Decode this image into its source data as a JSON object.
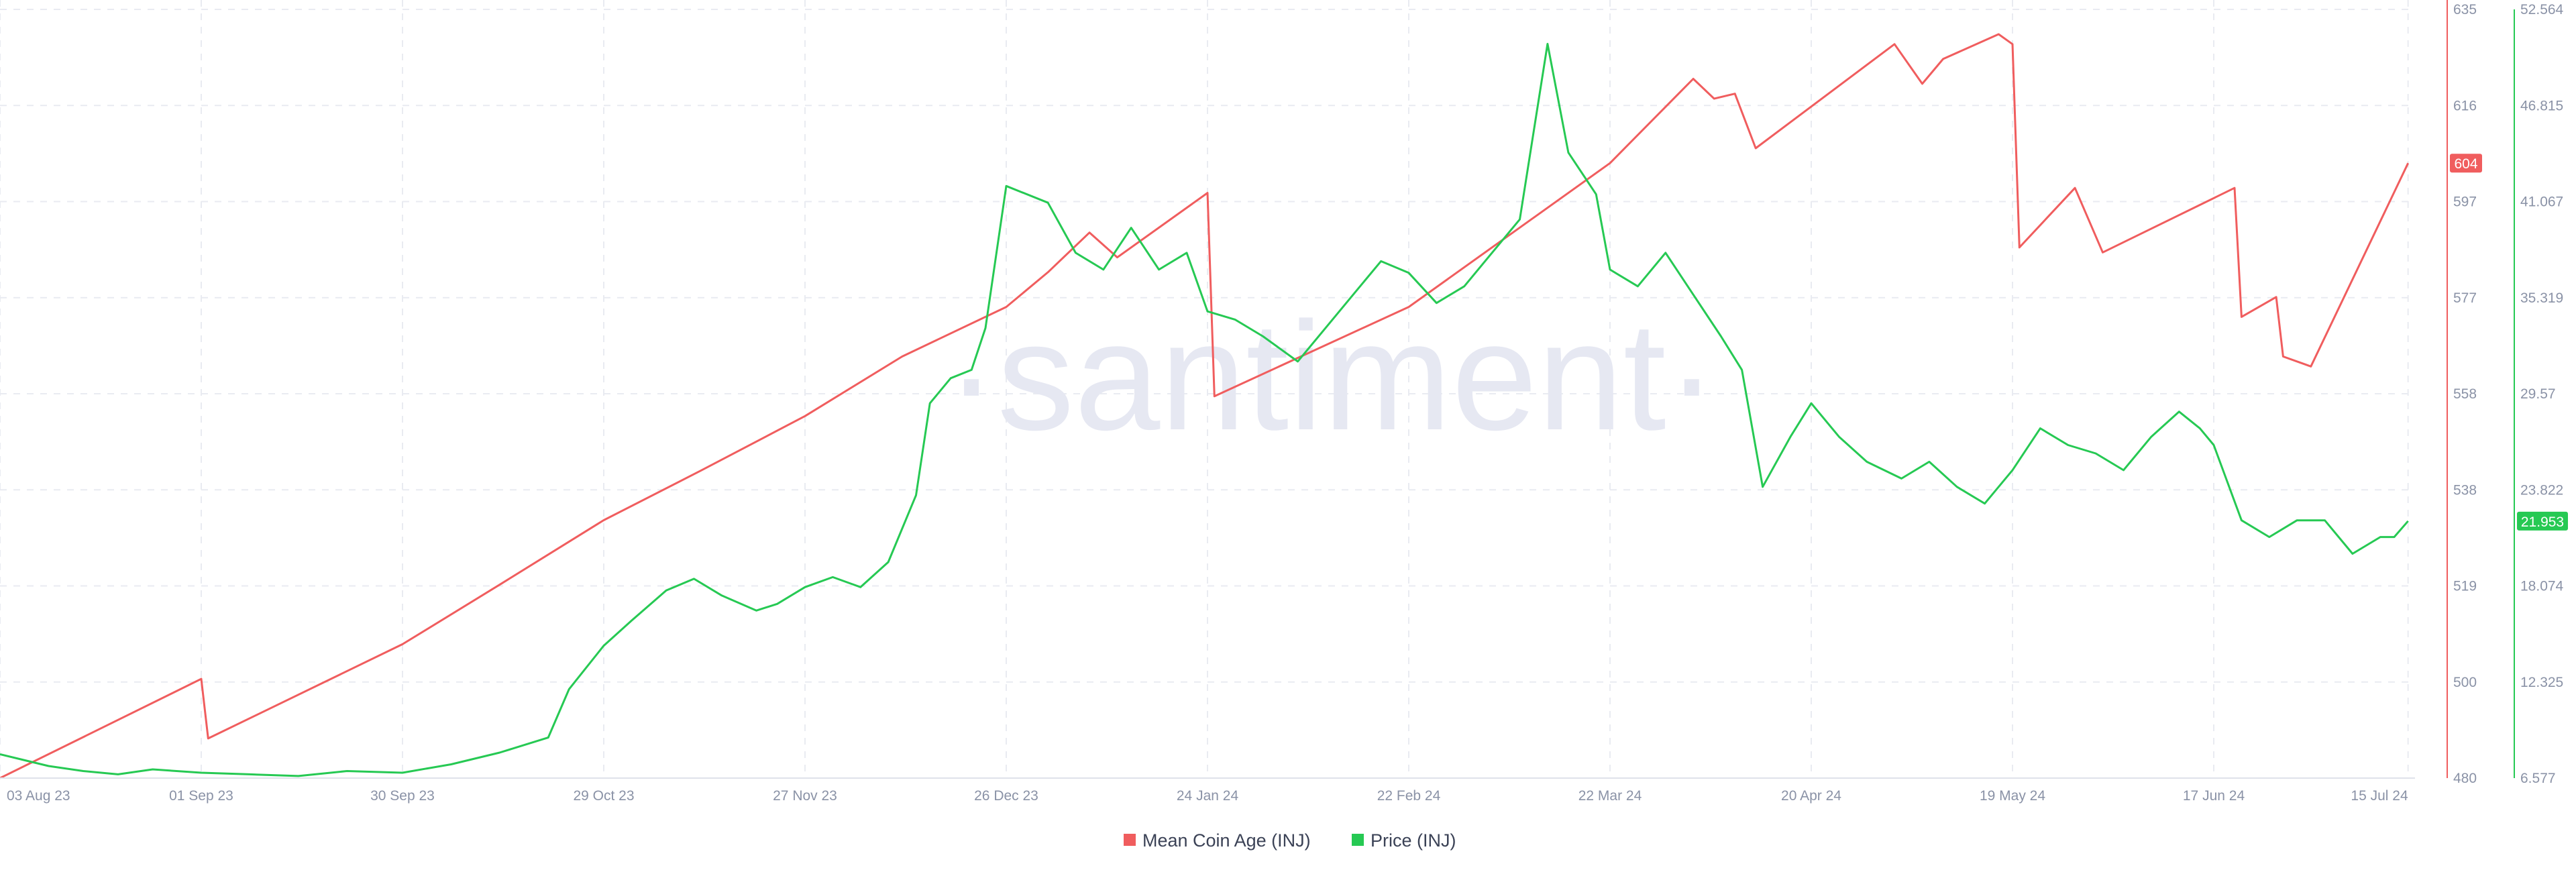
{
  "watermark": "·santiment·",
  "chart_data": {
    "type": "line",
    "x_tick_labels": [
      "03 Aug 23",
      "01 Sep 23",
      "30 Sep 23",
      "29 Oct 23",
      "27 Nov 23",
      "26 Dec 23",
      "24 Jan 24",
      "22 Feb 24",
      "22 Mar 24",
      "20 Apr 24",
      "19 May 24",
      "17 Jun 24",
      "15 Jul 24"
    ],
    "x_tick_dates": [
      "2023-08-03",
      "2023-09-01",
      "2023-09-30",
      "2023-10-29",
      "2023-11-27",
      "2023-12-26",
      "2024-01-24",
      "2024-02-22",
      "2024-03-22",
      "2024-04-20",
      "2024-05-19",
      "2024-06-17",
      "2024-07-15"
    ],
    "xlim": [
      "2023-08-03",
      "2024-07-16"
    ],
    "grid": true,
    "legend": "bottom-center",
    "axes": {
      "mean_coin_age": {
        "side": "right",
        "color": "#f05d5e",
        "ylim": [
          480,
          635
        ],
        "ticks": [
          "635",
          "616",
          "597",
          "577",
          "558",
          "538",
          "519",
          "500",
          "480"
        ]
      },
      "price": {
        "side": "right",
        "color": "#26c953",
        "ylim": [
          6.577,
          52.564
        ],
        "ticks": [
          "52.564",
          "46.815",
          "41.067",
          "35.319",
          "29.57",
          "23.822",
          "18.074",
          "12.325",
          "6.577"
        ]
      }
    },
    "series": [
      {
        "name": "Mean Coin Age (INJ)",
        "axis": "mean_coin_age",
        "color": "#f05d5e",
        "last_value_label": "604",
        "points": [
          [
            "2023-08-03",
            480.0
          ],
          [
            "2023-09-01",
            500.0
          ],
          [
            "2023-09-02",
            488.0
          ],
          [
            "2023-09-30",
            507.0
          ],
          [
            "2023-10-14",
            519.0
          ],
          [
            "2023-10-29",
            532.0
          ],
          [
            "2023-11-12",
            542.0
          ],
          [
            "2023-11-27",
            553.0
          ],
          [
            "2023-12-11",
            565.0
          ],
          [
            "2023-12-26",
            575.0
          ],
          [
            "2024-01-01",
            582.0
          ],
          [
            "2024-01-07",
            590.0
          ],
          [
            "2024-01-11",
            585.0
          ],
          [
            "2024-01-24",
            598.0
          ],
          [
            "2024-01-25",
            557.0
          ],
          [
            "2024-02-22",
            575.0
          ],
          [
            "2024-03-22",
            604.0
          ],
          [
            "2024-04-03",
            621.0
          ],
          [
            "2024-04-06",
            617.0
          ],
          [
            "2024-04-09",
            618.0
          ],
          [
            "2024-04-12",
            607.0
          ],
          [
            "2024-05-02",
            628.0
          ],
          [
            "2024-05-06",
            620.0
          ],
          [
            "2024-05-09",
            625.0
          ],
          [
            "2024-05-17",
            630.0
          ],
          [
            "2024-05-19",
            628.0
          ],
          [
            "2024-05-20",
            587.0
          ],
          [
            "2024-05-26",
            596.0
          ],
          [
            "2024-05-28",
            599.0
          ],
          [
            "2024-06-01",
            586.0
          ],
          [
            "2024-06-20",
            599.0
          ],
          [
            "2024-06-21",
            573.0
          ],
          [
            "2024-06-26",
            577.0
          ],
          [
            "2024-06-27",
            565.0
          ],
          [
            "2024-07-01",
            563.0
          ],
          [
            "2024-07-15",
            604.0
          ]
        ]
      },
      {
        "name": "Price (INJ)",
        "axis": "price",
        "color": "#26c953",
        "last_value_label": "21.953",
        "points": [
          [
            "2023-08-03",
            8.0
          ],
          [
            "2023-08-07",
            7.6
          ],
          [
            "2023-08-10",
            7.3
          ],
          [
            "2023-08-15",
            7.0
          ],
          [
            "2023-08-20",
            6.8
          ],
          [
            "2023-08-25",
            7.1
          ],
          [
            "2023-09-01",
            6.9
          ],
          [
            "2023-09-08",
            6.8
          ],
          [
            "2023-09-15",
            6.7
          ],
          [
            "2023-09-22",
            7.0
          ],
          [
            "2023-09-30",
            6.9
          ],
          [
            "2023-10-07",
            7.4
          ],
          [
            "2023-10-14",
            8.1
          ],
          [
            "2023-10-21",
            9.0
          ],
          [
            "2023-10-24",
            11.9
          ],
          [
            "2023-10-29",
            14.5
          ],
          [
            "2023-11-02",
            16.0
          ],
          [
            "2023-11-07",
            17.8
          ],
          [
            "2023-11-11",
            18.5
          ],
          [
            "2023-11-15",
            17.5
          ],
          [
            "2023-11-20",
            16.6
          ],
          [
            "2023-11-23",
            17.0
          ],
          [
            "2023-11-27",
            18.0
          ],
          [
            "2023-12-01",
            18.6
          ],
          [
            "2023-12-05",
            18.0
          ],
          [
            "2023-12-09",
            19.5
          ],
          [
            "2023-12-13",
            23.5
          ],
          [
            "2023-12-15",
            29.0
          ],
          [
            "2023-12-18",
            30.5
          ],
          [
            "2023-12-21",
            31.0
          ],
          [
            "2023-12-23",
            33.5
          ],
          [
            "2023-12-26",
            42.0
          ],
          [
            "2024-01-01",
            41.0
          ],
          [
            "2024-01-05",
            38.0
          ],
          [
            "2024-01-09",
            37.0
          ],
          [
            "2024-01-13",
            39.5
          ],
          [
            "2024-01-17",
            37.0
          ],
          [
            "2024-01-21",
            38.0
          ],
          [
            "2024-01-24",
            34.5
          ],
          [
            "2024-01-28",
            34.0
          ],
          [
            "2024-02-01",
            33.0
          ],
          [
            "2024-02-06",
            31.5
          ],
          [
            "2024-02-10",
            33.5
          ],
          [
            "2024-02-14",
            35.5
          ],
          [
            "2024-02-18",
            37.5
          ],
          [
            "2024-02-22",
            36.8
          ],
          [
            "2024-02-26",
            35.0
          ],
          [
            "2024-03-01",
            36.0
          ],
          [
            "2024-03-05",
            38.0
          ],
          [
            "2024-03-09",
            40.0
          ],
          [
            "2024-03-13",
            50.5
          ],
          [
            "2024-03-16",
            44.0
          ],
          [
            "2024-03-20",
            41.5
          ],
          [
            "2024-03-22",
            37.0
          ],
          [
            "2024-03-26",
            36.0
          ],
          [
            "2024-03-30",
            38.0
          ],
          [
            "2024-04-03",
            35.5
          ],
          [
            "2024-04-07",
            33.0
          ],
          [
            "2024-04-10",
            31.0
          ],
          [
            "2024-04-13",
            24.0
          ],
          [
            "2024-04-17",
            27.0
          ],
          [
            "2024-04-20",
            29.0
          ],
          [
            "2024-04-24",
            27.0
          ],
          [
            "2024-04-28",
            25.5
          ],
          [
            "2024-05-03",
            24.5
          ],
          [
            "2024-05-07",
            25.5
          ],
          [
            "2024-05-11",
            24.0
          ],
          [
            "2024-05-15",
            23.0
          ],
          [
            "2024-05-19",
            25.0
          ],
          [
            "2024-05-23",
            27.5
          ],
          [
            "2024-05-27",
            26.5
          ],
          [
            "2024-05-31",
            26.0
          ],
          [
            "2024-06-04",
            25.0
          ],
          [
            "2024-06-08",
            27.0
          ],
          [
            "2024-06-12",
            28.5
          ],
          [
            "2024-06-15",
            27.5
          ],
          [
            "2024-06-17",
            26.5
          ],
          [
            "2024-06-21",
            22.0
          ],
          [
            "2024-06-25",
            21.0
          ],
          [
            "2024-06-29",
            22.0
          ],
          [
            "2024-07-03",
            22.0
          ],
          [
            "2024-07-07",
            20.0
          ],
          [
            "2024-07-11",
            21.0
          ],
          [
            "2024-07-13",
            21.0
          ],
          [
            "2024-07-15",
            21.953
          ]
        ]
      }
    ]
  }
}
